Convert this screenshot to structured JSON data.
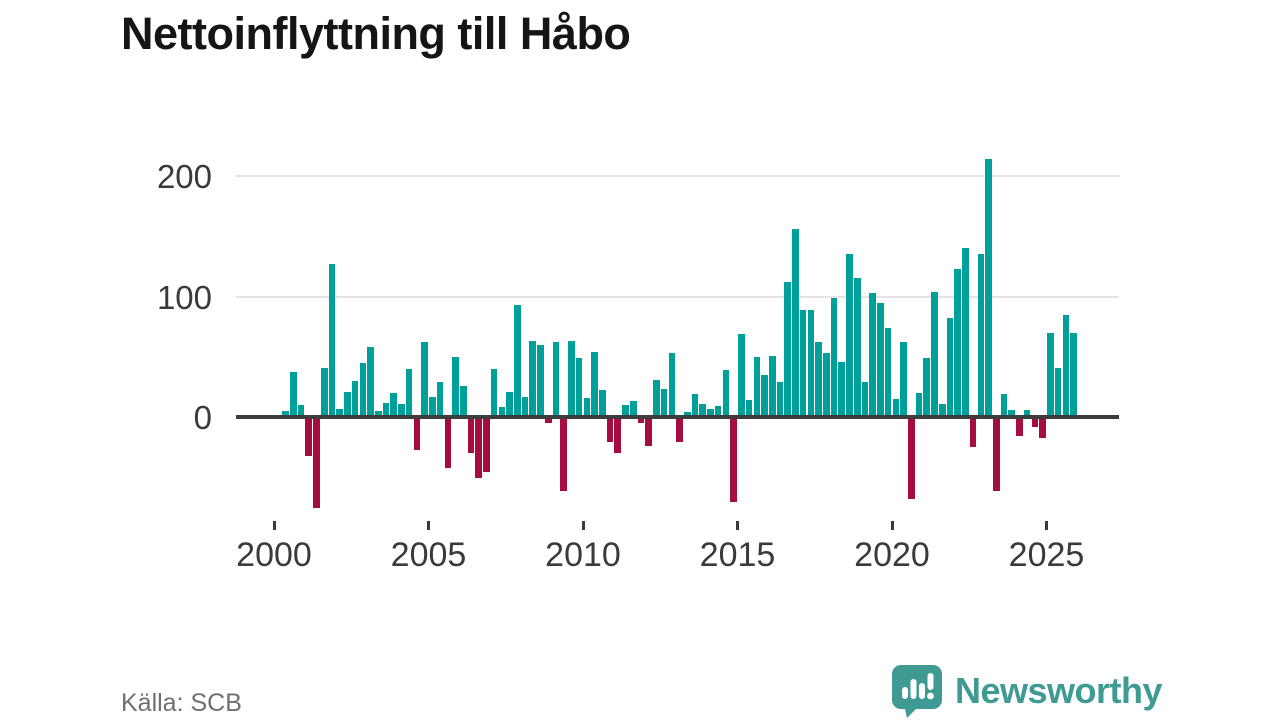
{
  "header": {
    "title": "Nettoinflyttning till Håbo"
  },
  "footer": {
    "source_label": "Källa: SCB",
    "brand_name": "Newsworthy"
  },
  "colors": {
    "positive_bar": "#00a09a",
    "negative_bar": "#a60c3f",
    "brand_teal": "#3e9a93",
    "axis_text": "#3a3a3a",
    "gridline": "#e4e4e4",
    "zero_line": "#3d3d3d"
  },
  "chart_data": {
    "type": "bar",
    "title": "Nettoinflyttning till Håbo",
    "frequency": "quarterly",
    "start_year": 2000,
    "start_quarter": 2,
    "values": [
      5,
      37,
      10,
      -31,
      -74,
      41,
      127,
      7,
      21,
      30,
      45,
      58,
      5,
      12,
      20,
      11,
      40,
      -26,
      62,
      17,
      29,
      -41,
      50,
      26,
      -28,
      -49,
      -44,
      40,
      8,
      21,
      93,
      17,
      63,
      60,
      -3,
      62,
      -60,
      63,
      49,
      16,
      54,
      22,
      -19,
      -28,
      10,
      13,
      -3,
      -22,
      31,
      23,
      53,
      -19,
      4,
      19,
      11,
      7,
      9,
      39,
      -69,
      69,
      14,
      50,
      35,
      51,
      29,
      112,
      156,
      89,
      89,
      62,
      53,
      99,
      46,
      135,
      115,
      29,
      103,
      95,
      74,
      15,
      62,
      -66,
      20,
      49,
      104,
      11,
      82,
      123,
      140,
      -23,
      135,
      214,
      -60,
      19,
      6,
      -14,
      6,
      -7,
      -16,
      70,
      41,
      85,
      70
    ],
    "x_tick_years": [
      2000,
      2005,
      2010,
      2015,
      2020,
      2025
    ],
    "y_ticks": [
      0,
      100,
      200
    ],
    "ylim": [
      -100,
      230
    ],
    "grid": "horizontal",
    "legend": "none",
    "xlabel": "",
    "ylabel": ""
  }
}
